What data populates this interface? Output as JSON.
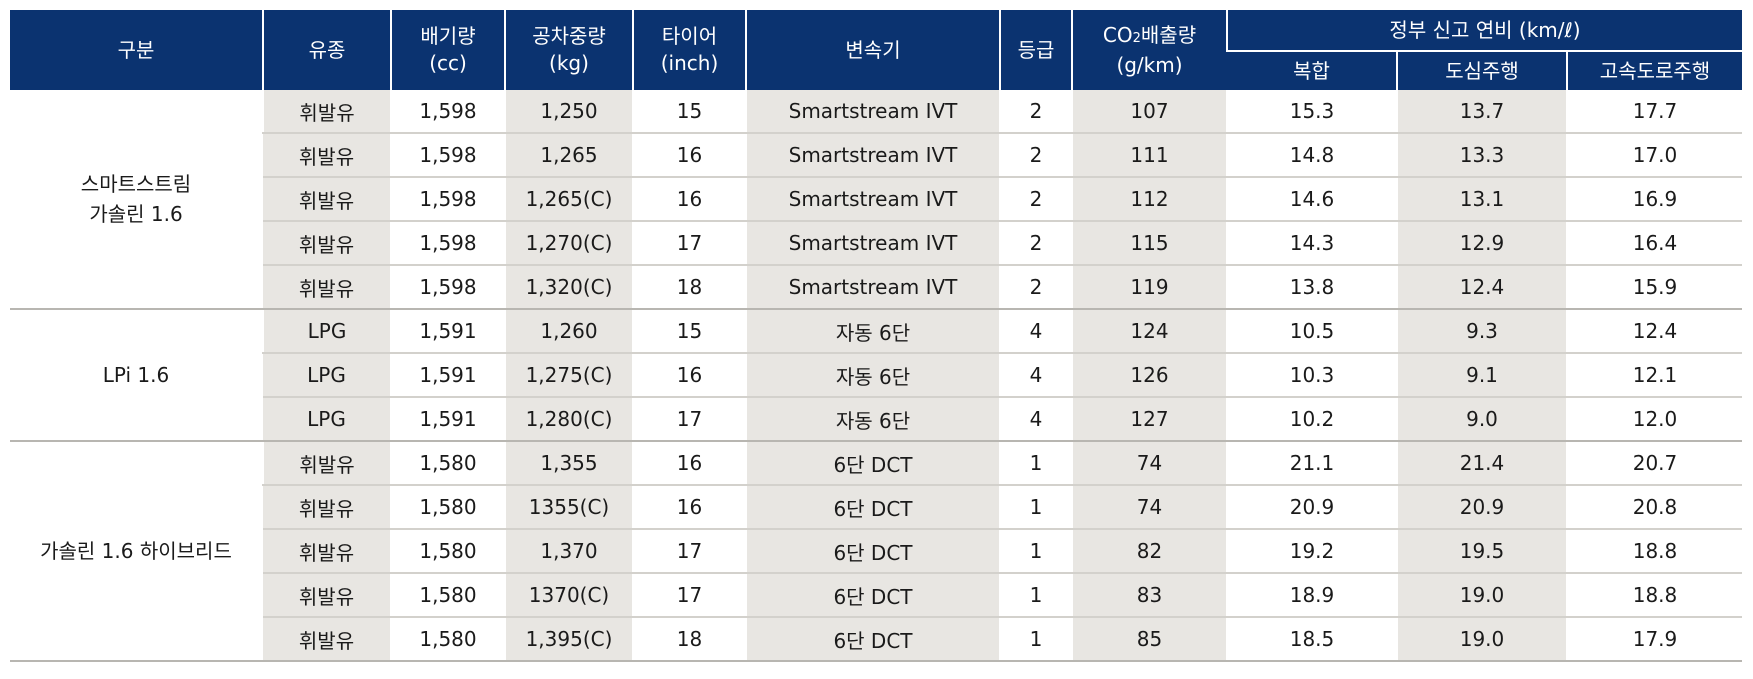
{
  "header": {
    "category": "구분",
    "fuel": "유종",
    "displacement": [
      "배기량",
      "(cc)"
    ],
    "curb_weight": [
      "공차중량",
      "(kg)"
    ],
    "tire": [
      "타이어",
      "(inch)"
    ],
    "transmission": "변속기",
    "grade": "등급",
    "co2_prefix": "CO",
    "co2_sub": "2",
    "co2_suffix": "배출량",
    "co2_unit": "(g/km)",
    "efficiency_group": "정부 신고 연비 (km/ℓ)",
    "combined": "복합",
    "city": "도심주행",
    "highway": "고속도로주행"
  },
  "groups": [
    {
      "name_lines": [
        "스마트스트림",
        "가솔린 1.6"
      ],
      "rows": [
        {
          "fuel": "휘발유",
          "cc": "1,598",
          "kg": "1,250",
          "tire": "15",
          "trans": "Smartstream IVT",
          "grade": "2",
          "co2": "107",
          "combined": "15.3",
          "city": "13.7",
          "highway": "17.7"
        },
        {
          "fuel": "휘발유",
          "cc": "1,598",
          "kg": "1,265",
          "tire": "16",
          "trans": "Smartstream IVT",
          "grade": "2",
          "co2": "111",
          "combined": "14.8",
          "city": "13.3",
          "highway": "17.0"
        },
        {
          "fuel": "휘발유",
          "cc": "1,598",
          "kg": "1,265(C)",
          "tire": "16",
          "trans": "Smartstream IVT",
          "grade": "2",
          "co2": "112",
          "combined": "14.6",
          "city": "13.1",
          "highway": "16.9"
        },
        {
          "fuel": "휘발유",
          "cc": "1,598",
          "kg": "1,270(C)",
          "tire": "17",
          "trans": "Smartstream IVT",
          "grade": "2",
          "co2": "115",
          "combined": "14.3",
          "city": "12.9",
          "highway": "16.4"
        },
        {
          "fuel": "휘발유",
          "cc": "1,598",
          "kg": "1,320(C)",
          "tire": "18",
          "trans": "Smartstream IVT",
          "grade": "2",
          "co2": "119",
          "combined": "13.8",
          "city": "12.4",
          "highway": "15.9"
        }
      ]
    },
    {
      "name_lines": [
        "LPi 1.6"
      ],
      "rows": [
        {
          "fuel": "LPG",
          "cc": "1,591",
          "kg": "1,260",
          "tire": "15",
          "trans": "자동 6단",
          "grade": "4",
          "co2": "124",
          "combined": "10.5",
          "city": "9.3",
          "highway": "12.4"
        },
        {
          "fuel": "LPG",
          "cc": "1,591",
          "kg": "1,275(C)",
          "tire": "16",
          "trans": "자동 6단",
          "grade": "4",
          "co2": "126",
          "combined": "10.3",
          "city": "9.1",
          "highway": "12.1"
        },
        {
          "fuel": "LPG",
          "cc": "1,591",
          "kg": "1,280(C)",
          "tire": "17",
          "trans": "자동 6단",
          "grade": "4",
          "co2": "127",
          "combined": "10.2",
          "city": "9.0",
          "highway": "12.0"
        }
      ]
    },
    {
      "name_lines": [
        "가솔린 1.6 하이브리드"
      ],
      "rows": [
        {
          "fuel": "휘발유",
          "cc": "1,580",
          "kg": "1,355",
          "tire": "16",
          "trans": "6단 DCT",
          "grade": "1",
          "co2": "74",
          "combined": "21.1",
          "city": "21.4",
          "highway": "20.7"
        },
        {
          "fuel": "휘발유",
          "cc": "1,580",
          "kg": "1355(C)",
          "tire": "16",
          "trans": "6단 DCT",
          "grade": "1",
          "co2": "74",
          "combined": "20.9",
          "city": "20.9",
          "highway": "20.8"
        },
        {
          "fuel": "휘발유",
          "cc": "1,580",
          "kg": "1,370",
          "tire": "17",
          "trans": "6단 DCT",
          "grade": "1",
          "co2": "82",
          "combined": "19.2",
          "city": "19.5",
          "highway": "18.8"
        },
        {
          "fuel": "휘발유",
          "cc": "1,580",
          "kg": "1370(C)",
          "tire": "17",
          "trans": "6단 DCT",
          "grade": "1",
          "co2": "83",
          "combined": "18.9",
          "city": "19.0",
          "highway": "18.8"
        },
        {
          "fuel": "휘발유",
          "cc": "1,580",
          "kg": "1,395(C)",
          "tire": "18",
          "trans": "6단 DCT",
          "grade": "1",
          "co2": "85",
          "combined": "18.5",
          "city": "19.0",
          "highway": "17.9"
        }
      ]
    }
  ],
  "colors": {
    "header_bg": "#0b3370",
    "header_text": "#ffffff",
    "shaded_cell": "#e8e6e2",
    "row_divider": "#d3d1cc"
  }
}
